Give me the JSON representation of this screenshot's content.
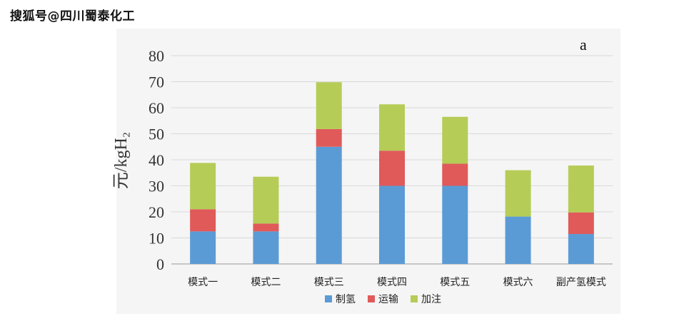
{
  "watermark": "搜狐号@四川蜀泰化工",
  "chart_data": {
    "type": "bar",
    "stacked": true,
    "panel_label": "a",
    "ylabel": "元/kgH₂",
    "ylim": [
      0,
      80
    ],
    "yticks": [
      0,
      10,
      20,
      30,
      40,
      50,
      60,
      70,
      80
    ],
    "grid": true,
    "legend_position": "bottom",
    "categories": [
      "模式一",
      "模式二",
      "模式三",
      "模式四",
      "模式五",
      "模式六",
      "副产氢模式"
    ],
    "series": [
      {
        "name": "制氢",
        "color": "#5b9bd5",
        "values": [
          12.5,
          12.5,
          45,
          30,
          30,
          18.2,
          11.5
        ]
      },
      {
        "name": "运输",
        "color": "#e05a5a",
        "values": [
          8.5,
          3,
          6.8,
          13.5,
          8.5,
          0,
          8.3
        ]
      },
      {
        "name": "加注",
        "color": "#b5cc57",
        "values": [
          17.8,
          18,
          18,
          17.8,
          18,
          17.8,
          18
        ]
      }
    ]
  }
}
